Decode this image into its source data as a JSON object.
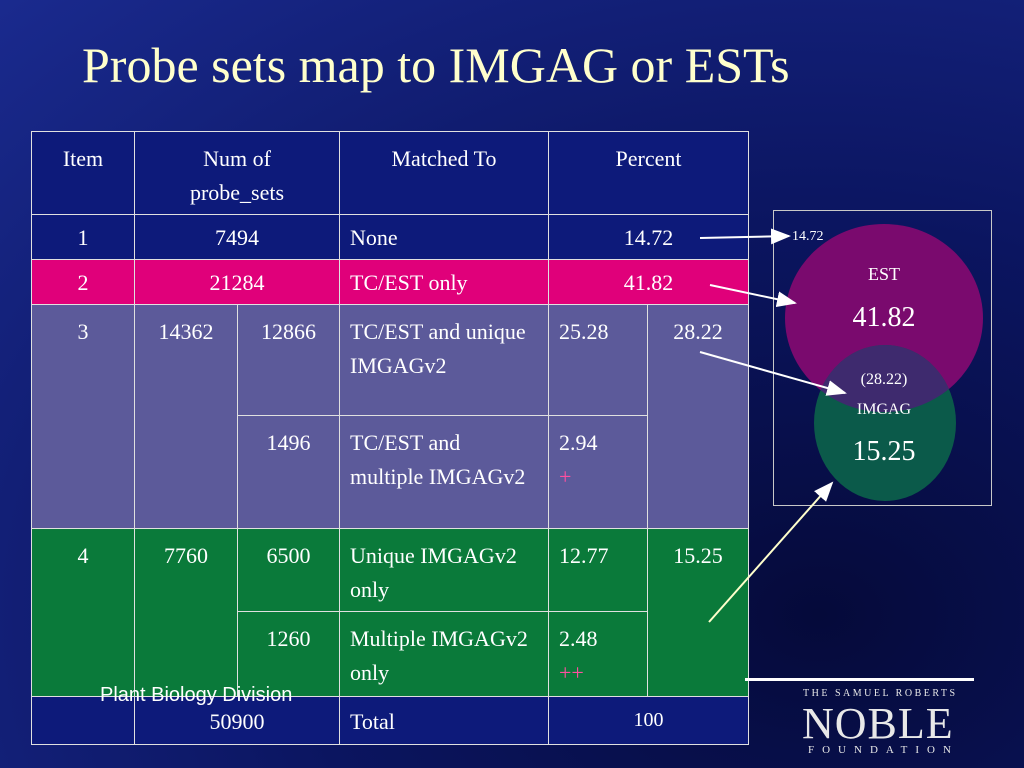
{
  "title": "Probe sets map to IMGAG or ESTs",
  "table": {
    "headers": [
      "Item",
      "Num of\nprobe_sets",
      "Matched To",
      "Percent"
    ],
    "row1": {
      "item": "1",
      "num": "7494",
      "matched": "None",
      "percent": "14.72"
    },
    "row2": {
      "item": "2",
      "num": "21284",
      "matched": "TC/EST only",
      "percent": "41.82"
    },
    "row3": {
      "item": "3",
      "num": "14362",
      "group_percent": "28.22",
      "sub1": {
        "count": "12866",
        "matched": "TC/EST and unique IMGAGv2",
        "percent": "25.28"
      },
      "sub2": {
        "count": "1496",
        "matched": "TC/EST and multiple IMGAGv2",
        "percent": "2.94",
        "mark": "+"
      }
    },
    "row4": {
      "item": "4",
      "num": "7760",
      "group_percent": "15.25",
      "sub1": {
        "count": "6500",
        "matched": "Unique IMGAGv2 only",
        "percent": "12.77"
      },
      "sub2": {
        "count": "1260",
        "matched": "Multiple IMGAGv2 only",
        "percent": "2.48",
        "mark": "++"
      }
    },
    "total": {
      "num": "50900",
      "matched": "Total",
      "percent": "100"
    }
  },
  "venn": {
    "none_value": "14.72",
    "est_label": "EST",
    "est_value": "41.82",
    "overlap_value": "(28.22)",
    "imgag_label": "IMGAG",
    "imgag_value": "15.25",
    "colors": {
      "est": "#7a0a6e",
      "imgag": "#0b5a4a"
    }
  },
  "footer": {
    "division": "Plant Biology Division",
    "logo_top": "THE SAMUEL ROBERTS",
    "logo_main": "NOBLE",
    "logo_bottom": "FOUNDATION"
  }
}
